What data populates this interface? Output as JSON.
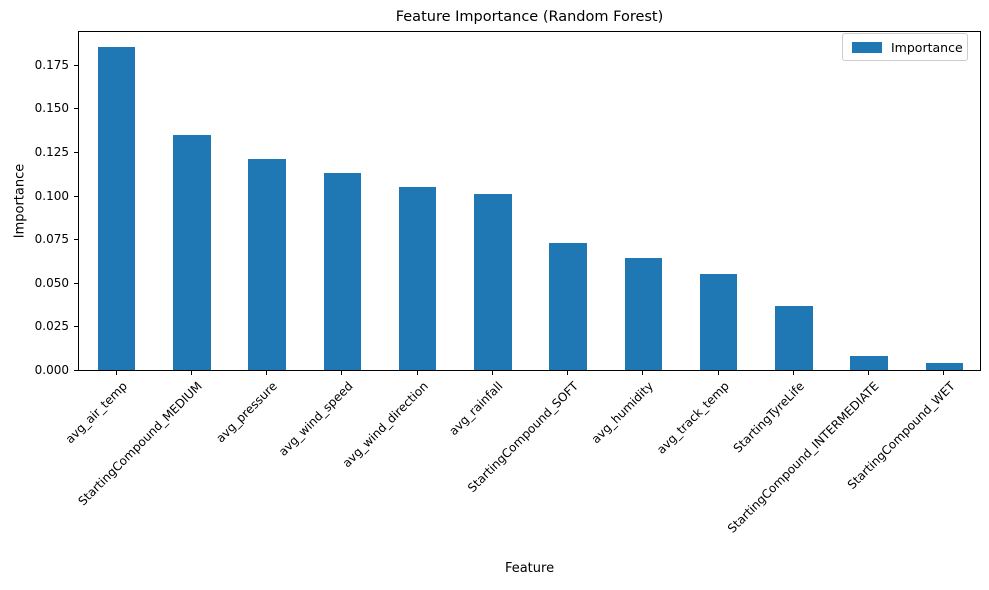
{
  "chart_data": {
    "type": "bar",
    "title": "Feature Importance (Random Forest)",
    "xlabel": "Feature",
    "ylabel": "Importance",
    "categories": [
      "avg_air_temp",
      "StartingCompound_MEDIUM",
      "avg_pressure",
      "avg_wind_speed",
      "avg_wind_direction",
      "avg_rainfall",
      "StartingCompound_SOFT",
      "avg_humidity",
      "avg_track_temp",
      "StartingTyreLife",
      "StartingCompound_INTERMEDIATE",
      "StartingCompound_WET"
    ],
    "series": [
      {
        "name": "Importance",
        "values": [
          0.185,
          0.135,
          0.121,
          0.113,
          0.105,
          0.101,
          0.073,
          0.064,
          0.055,
          0.037,
          0.008,
          0.004
        ]
      }
    ],
    "bar_color": "#1f77b4",
    "ylim": [
      0,
      0.195
    ],
    "yticks": [
      0.0,
      0.025,
      0.05,
      0.075,
      0.1,
      0.125,
      0.15,
      0.175
    ],
    "ytick_labels": [
      "0.000",
      "0.025",
      "0.050",
      "0.075",
      "0.100",
      "0.125",
      "0.150",
      "0.175"
    ],
    "xtick_rotation": 45,
    "grid": false,
    "legend": {
      "position": "upper right",
      "entries": [
        "Importance"
      ]
    }
  }
}
